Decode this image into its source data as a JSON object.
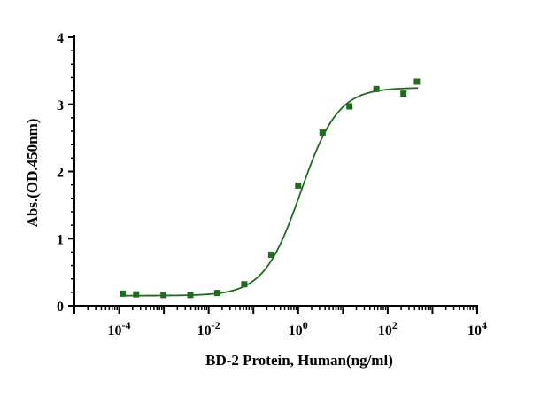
{
  "chart_data": {
    "type": "scatter",
    "xscale": "log",
    "xlabel": "BD-2 Protein, Human(ng/ml)",
    "ylabel": "Abs.(OD.450nm)",
    "xlim": [
      1e-05,
      10000
    ],
    "ylim": [
      0,
      4
    ],
    "yticks": [
      "0",
      "1",
      "2",
      "3",
      "4"
    ],
    "xticks": [
      {
        "base": "10",
        "exp": "-4",
        "value": 0.0001
      },
      {
        "base": "10",
        "exp": "-2",
        "value": 0.01
      },
      {
        "base": "10",
        "exp": "0",
        "value": 1
      },
      {
        "base": "10",
        "exp": "2",
        "value": 100
      },
      {
        "base": "10",
        "exp": "4",
        "value": 10000
      }
    ],
    "grid": false,
    "series": [
      {
        "color": "#1f6b1f",
        "marker": "square",
        "points": [
          {
            "x": 0.00012,
            "y": 0.18
          },
          {
            "x": 0.00024,
            "y": 0.17
          },
          {
            "x": 0.00098,
            "y": 0.16
          },
          {
            "x": 0.0039,
            "y": 0.16
          },
          {
            "x": 0.0156,
            "y": 0.19
          },
          {
            "x": 0.0625,
            "y": 0.32
          },
          {
            "x": 0.25,
            "y": 0.76
          },
          {
            "x": 1.0,
            "y": 1.79
          },
          {
            "x": 3.5,
            "y": 2.58
          },
          {
            "x": 14,
            "y": 2.97
          },
          {
            "x": 56,
            "y": 3.23
          },
          {
            "x": 225,
            "y": 3.16
          },
          {
            "x": 450,
            "y": 3.34
          }
        ]
      }
    ],
    "fit": {
      "type": "4PL",
      "color": "#1f6b1f",
      "bottom": 0.15,
      "top": 3.25,
      "ec50": 1.15,
      "hill": 1.05,
      "x_range": [
        0.00012,
        480
      ]
    }
  }
}
